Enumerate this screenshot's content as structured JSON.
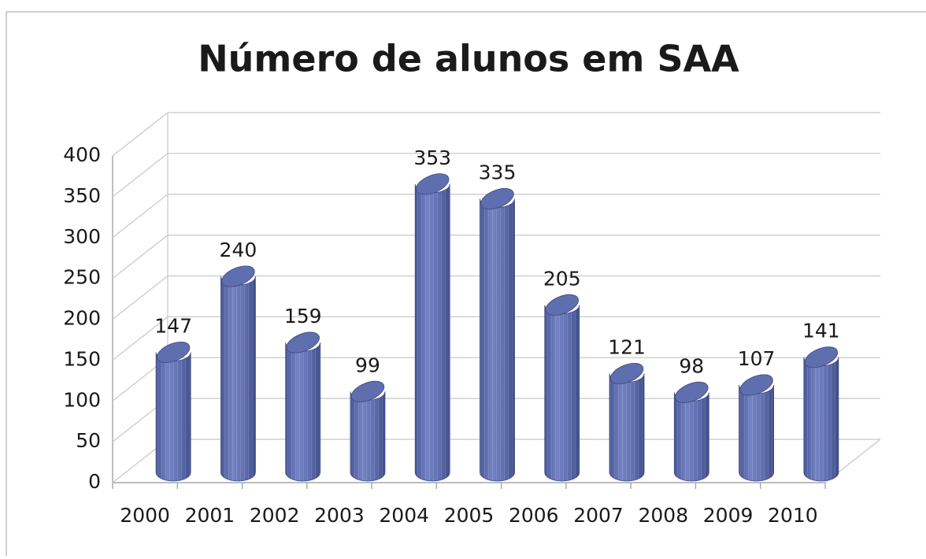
{
  "chart_data": {
    "type": "bar",
    "title": "Número de alunos em SAA",
    "categories": [
      "2000",
      "2001",
      "2002",
      "2003",
      "2004",
      "2005",
      "2006",
      "2007",
      "2008",
      "2009",
      "2010"
    ],
    "values": [
      147,
      240,
      159,
      99,
      353,
      335,
      205,
      121,
      98,
      107,
      141
    ],
    "color": "#5f6eae",
    "ylim": [
      0,
      400
    ],
    "yticks": [
      0,
      50,
      100,
      150,
      200,
      250,
      300,
      350,
      400
    ],
    "grid": true
  }
}
